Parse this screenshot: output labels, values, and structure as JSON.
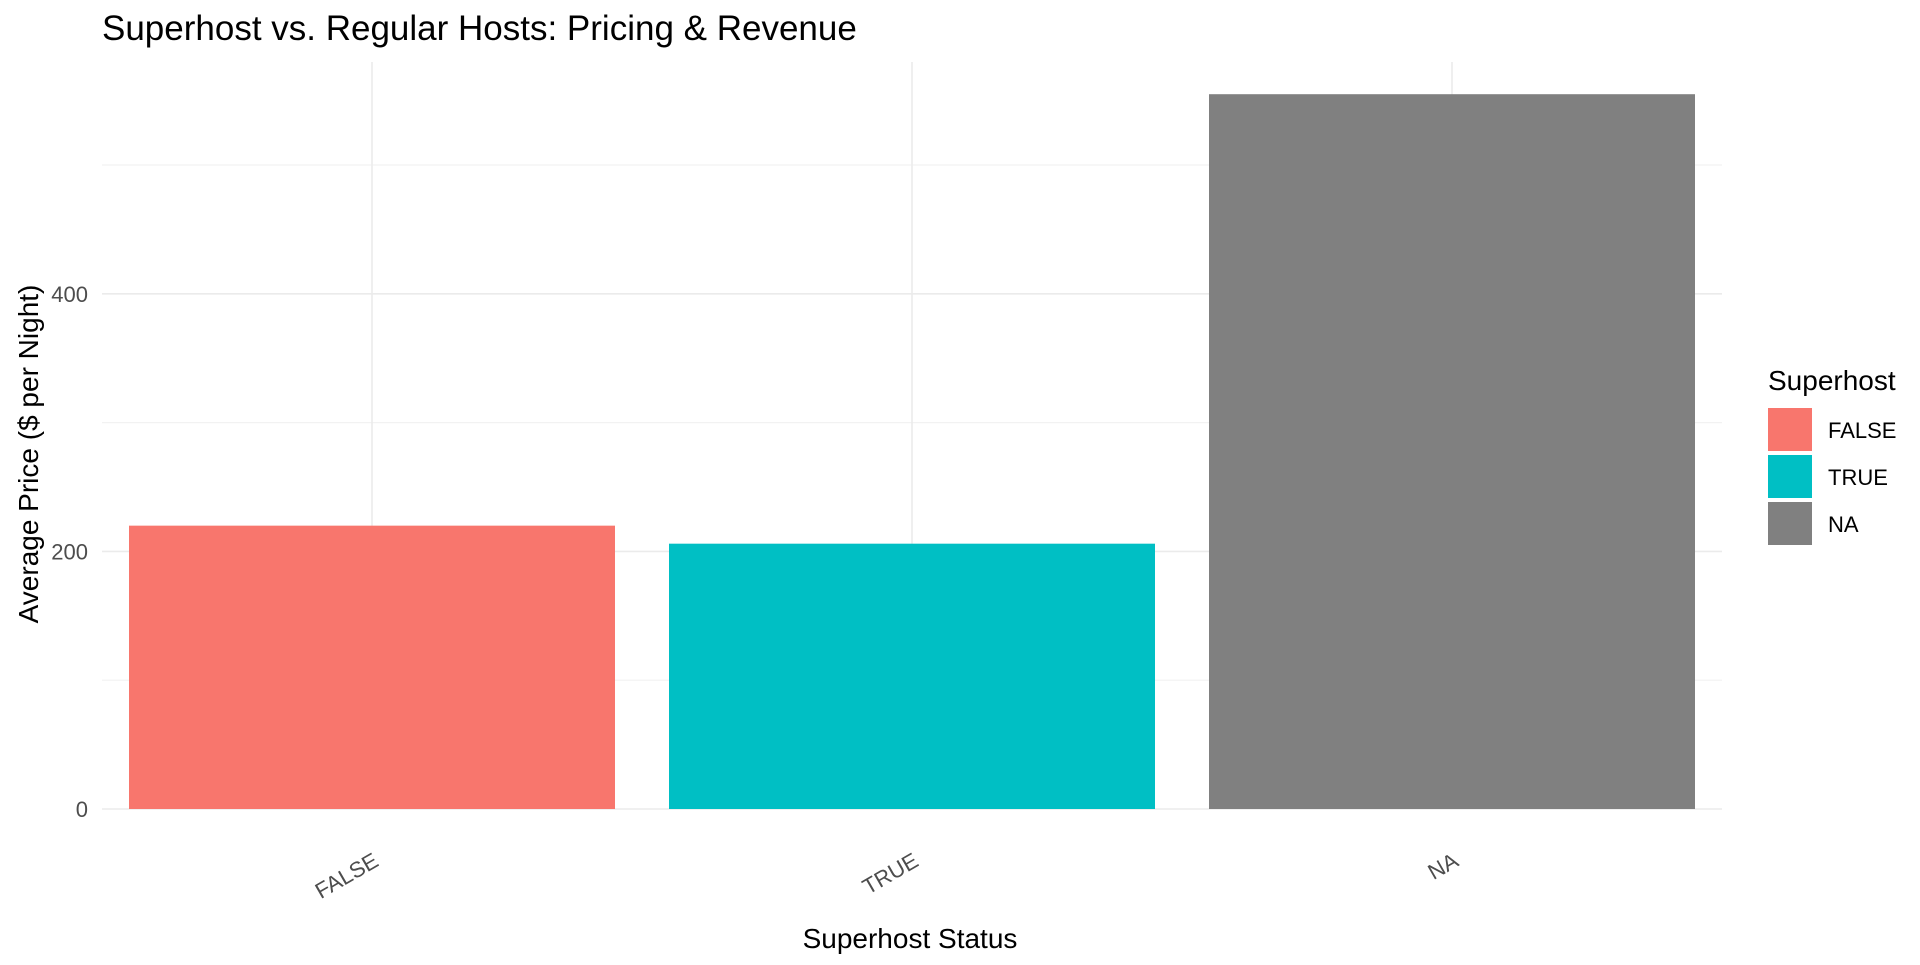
{
  "chart_data": {
    "type": "bar",
    "title": "Superhost vs. Regular Hosts: Pricing & Revenue",
    "xlabel": "Superhost Status",
    "ylabel": "Average Price ($ per Night)",
    "categories": [
      "FALSE",
      "TRUE",
      "NA"
    ],
    "values": [
      220,
      206,
      555
    ],
    "colors": [
      "#F8766D",
      "#00BFC4",
      "#808080"
    ],
    "ylim": [
      0,
      580
    ],
    "yticks": [
      0,
      200,
      400
    ],
    "y_minor_ticks": [
      100,
      300,
      500
    ],
    "grid": true,
    "legend": {
      "title": "Superhost",
      "placement": "right",
      "entries": [
        "FALSE",
        "TRUE",
        "NA"
      ]
    }
  }
}
